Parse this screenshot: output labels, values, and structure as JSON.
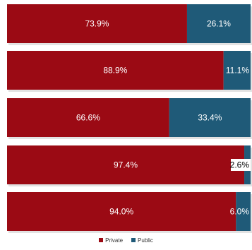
{
  "chart_data": {
    "type": "bar",
    "orientation": "horizontal",
    "stacked": true,
    "normalized_percent": true,
    "categories": [
      "",
      "",
      "",
      "",
      ""
    ],
    "series": [
      {
        "name": "Private",
        "values": [
          73.9,
          88.9,
          66.6,
          97.4,
          94.0
        ],
        "labels": [
          "73.9%",
          "88.9%",
          "66.6%",
          "97.4%",
          "94.0%"
        ],
        "color": "#9b0a14"
      },
      {
        "name": "Public",
        "values": [
          26.1,
          11.1,
          33.4,
          2.6,
          6.0
        ],
        "labels": [
          "26.1%",
          "11.1%",
          "33.4%",
          "2.6%",
          "6.0%"
        ],
        "color": "#1f5a78"
      }
    ],
    "xlim": [
      0,
      100
    ],
    "title": "",
    "xlabel": "",
    "ylabel": "",
    "grid": false,
    "legend": "bottom-center"
  },
  "legend": {
    "items": [
      {
        "label": "Private",
        "color": "#9b0a14"
      },
      {
        "label": "Public",
        "color": "#1f5a78"
      }
    ]
  }
}
